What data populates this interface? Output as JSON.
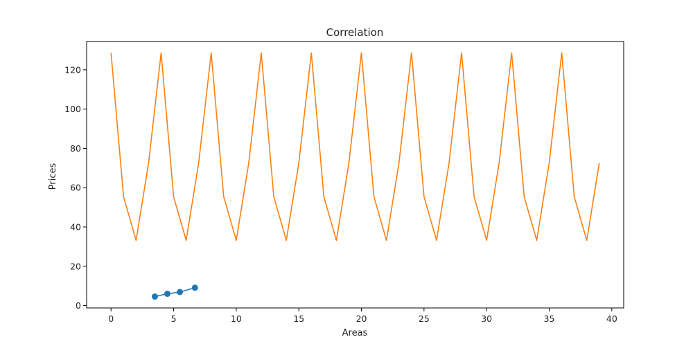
{
  "chart_data": {
    "type": "line",
    "title": "Correlation",
    "xlabel": "Areas",
    "ylabel": "Prices",
    "xlim": [
      -1.95,
      40.95
    ],
    "ylim": [
      -1.2,
      134.4
    ],
    "xticks": [
      0,
      5,
      10,
      15,
      20,
      25,
      30,
      35,
      40
    ],
    "yticks": [
      0,
      20,
      40,
      60,
      80,
      100,
      120
    ],
    "grid": false,
    "legend": null,
    "series": [
      {
        "color": "#ff7f0e",
        "marker": "none",
        "x": [
          0,
          1,
          2,
          3,
          4,
          5,
          6,
          7,
          8,
          9,
          10,
          11,
          12,
          13,
          14,
          15,
          16,
          17,
          18,
          19,
          20,
          21,
          22,
          23,
          24,
          25,
          26,
          27,
          28,
          29,
          30,
          31,
          32,
          33,
          34,
          35,
          36,
          37,
          38,
          39
        ],
        "y": [
          128.6,
          55.4,
          33.2,
          72.6,
          128.6,
          55.4,
          33.2,
          72.6,
          128.6,
          55.4,
          33.2,
          72.6,
          128.6,
          55.4,
          33.2,
          72.6,
          128.6,
          55.4,
          33.2,
          72.6,
          128.6,
          55.4,
          33.2,
          72.6,
          128.6,
          55.4,
          33.2,
          72.6,
          128.6,
          55.4,
          33.2,
          72.6,
          128.6,
          55.4,
          33.2,
          72.6,
          128.6,
          55.4,
          33.2,
          72.6
        ]
      },
      {
        "color": "#1f77b4",
        "marker": "circle",
        "x": [
          3.5,
          4.5,
          5.5,
          6.7
        ],
        "y": [
          4.6,
          6.0,
          6.9,
          9.1
        ]
      }
    ]
  }
}
